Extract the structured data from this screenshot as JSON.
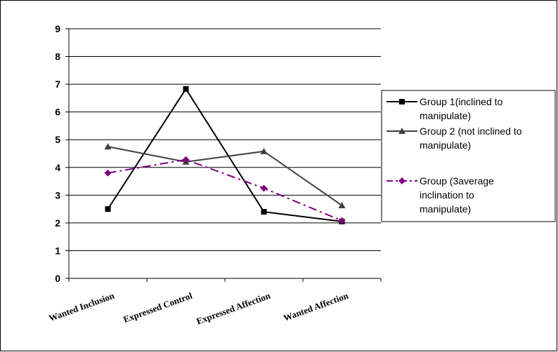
{
  "chart_data": {
    "type": "line",
    "categories": [
      "Wanted Inclusion",
      "Expressed Control",
      "Expressed Affection",
      "Wanted Affection"
    ],
    "ylim": [
      0,
      9
    ],
    "yticks": [
      0,
      1,
      2,
      3,
      4,
      5,
      6,
      7,
      8,
      9
    ],
    "grid": true,
    "legend_position": "right",
    "series": [
      {
        "name": "Group 1(inclined to manipulate)",
        "name_lines": [
          "Group 1(inclined to",
          "manipulate)"
        ],
        "values": [
          2.5,
          6.83,
          2.4,
          2.05
        ],
        "color": "#000000",
        "marker": "square",
        "dash": "solid"
      },
      {
        "name": "Group 2 (not inclined to manipulate)",
        "name_lines": [
          "Group 2 (not inclined to",
          "manipulate)"
        ],
        "values": [
          4.75,
          4.2,
          4.58,
          2.63
        ],
        "color": "#404040",
        "marker": "triangle",
        "dash": "solid"
      },
      {
        "name": "Group (3average inclination to manipulate)",
        "name_lines": [
          "Group (3average",
          "inclination to",
          "manipulate)"
        ],
        "values": [
          3.8,
          4.28,
          3.25,
          2.08
        ],
        "color": "#800080",
        "marker": "diamond",
        "dash": "dashdot"
      }
    ]
  }
}
